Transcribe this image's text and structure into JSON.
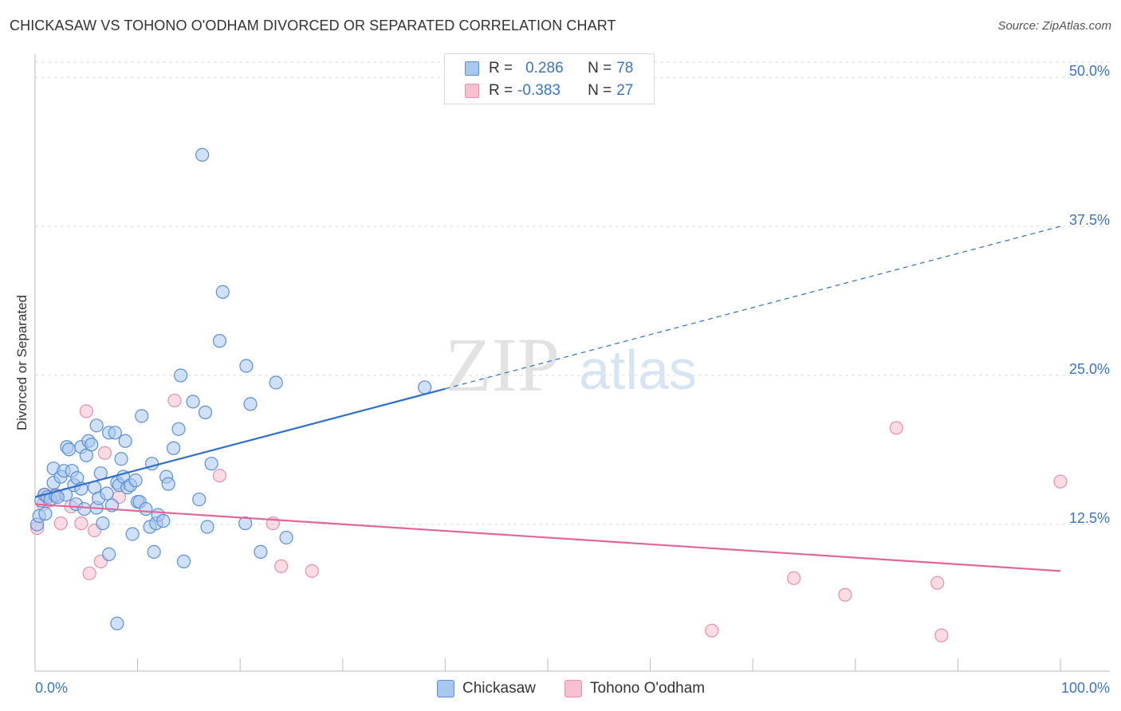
{
  "title": "CHICKASAW VS TOHONO O'ODHAM DIVORCED OR SEPARATED CORRELATION CHART",
  "source": "Source: ZipAtlas.com",
  "watermark": {
    "zip": "ZIP",
    "atlas": "atlas"
  },
  "legend": [
    {
      "r_label": "R =",
      "r_value": "0.286",
      "n_label": "N =",
      "n_value": "78"
    },
    {
      "r_label": "R =",
      "r_value": "-0.383",
      "n_label": "N =",
      "n_value": "27"
    }
  ],
  "colors": {
    "series1_fill": "#a9c8f0",
    "series1_stroke": "#5a8fd6",
    "series1_line": "#2f6fc8",
    "series2_fill": "#f7c0d0",
    "series2_stroke": "#e690ab",
    "series2_line": "#e0679a",
    "axis_text": "#3a74c4",
    "grid": "#dcdcdc"
  },
  "chart_data": {
    "type": "scatter",
    "title": "CHICKASAW VS TOHONO O'ODHAM DIVORCED OR SEPARATED CORRELATION CHART",
    "xlabel": "",
    "ylabel": "Divorced or Separated",
    "xlim": [
      0,
      100
    ],
    "ylim": [
      0,
      53
    ],
    "x_tick_labels": [
      "0.0%",
      "100.0%"
    ],
    "y_ticks": [
      12.5,
      25.0,
      37.5,
      50.0
    ],
    "y_tick_labels": [
      "12.5%",
      "25.0%",
      "37.5%",
      "50.0%"
    ],
    "grid": "horizontal dashed",
    "legend_position": "top-center",
    "series": [
      {
        "name": "Chickasaw",
        "points": [
          [
            0.2,
            12.5
          ],
          [
            0.4,
            13.2
          ],
          [
            0.6,
            14.5
          ],
          [
            0.9,
            15.0
          ],
          [
            1.2,
            14.8
          ],
          [
            1.5,
            14.6
          ],
          [
            1.8,
            16.0
          ],
          [
            1.8,
            17.2
          ],
          [
            2.0,
            14.9
          ],
          [
            2.5,
            16.5
          ],
          [
            2.8,
            17.0
          ],
          [
            3.0,
            15.0
          ],
          [
            3.1,
            19.0
          ],
          [
            3.3,
            18.8
          ],
          [
            3.6,
            17.0
          ],
          [
            3.8,
            15.8
          ],
          [
            4.0,
            14.2
          ],
          [
            4.1,
            16.4
          ],
          [
            4.5,
            15.5
          ],
          [
            4.5,
            19.0
          ],
          [
            4.8,
            13.8
          ],
          [
            5.0,
            18.3
          ],
          [
            5.2,
            19.5
          ],
          [
            5.5,
            19.2
          ],
          [
            5.8,
            15.6
          ],
          [
            6.0,
            13.9
          ],
          [
            6.0,
            20.8
          ],
          [
            6.2,
            14.7
          ],
          [
            6.4,
            16.8
          ],
          [
            6.6,
            12.6
          ],
          [
            7.0,
            15.1
          ],
          [
            7.2,
            20.2
          ],
          [
            7.5,
            14.1
          ],
          [
            7.8,
            20.2
          ],
          [
            8.0,
            16.0
          ],
          [
            8.2,
            15.8
          ],
          [
            8.4,
            18.0
          ],
          [
            8.6,
            16.5
          ],
          [
            8.8,
            19.5
          ],
          [
            9.0,
            15.6
          ],
          [
            9.3,
            15.8
          ],
          [
            9.5,
            11.7
          ],
          [
            9.8,
            16.2
          ],
          [
            10.0,
            14.4
          ],
          [
            10.2,
            14.4
          ],
          [
            10.4,
            21.6
          ],
          [
            10.8,
            13.8
          ],
          [
            11.2,
            12.3
          ],
          [
            11.4,
            17.6
          ],
          [
            11.6,
            10.2
          ],
          [
            11.8,
            12.6
          ],
          [
            12.0,
            13.3
          ],
          [
            12.5,
            12.8
          ],
          [
            12.8,
            16.5
          ],
          [
            13.0,
            15.9
          ],
          [
            13.5,
            18.9
          ],
          [
            14.0,
            20.5
          ],
          [
            14.2,
            25.0
          ],
          [
            14.5,
            9.4
          ],
          [
            15.4,
            22.8
          ],
          [
            16.0,
            14.6
          ],
          [
            16.3,
            43.5
          ],
          [
            16.6,
            21.9
          ],
          [
            16.8,
            12.3
          ],
          [
            17.2,
            17.6
          ],
          [
            18.0,
            27.9
          ],
          [
            18.3,
            32.0
          ],
          [
            20.5,
            12.6
          ],
          [
            20.6,
            25.8
          ],
          [
            21.0,
            22.6
          ],
          [
            22.0,
            10.2
          ],
          [
            23.5,
            24.4
          ],
          [
            24.5,
            11.4
          ],
          [
            38.0,
            24.0
          ],
          [
            8.0,
            4.2
          ],
          [
            7.2,
            10.0
          ],
          [
            2.2,
            14.8
          ],
          [
            1.0,
            13.4
          ]
        ],
        "trend": {
          "x_start": 0,
          "y_start": 14.8,
          "x_end": 100,
          "y_end": 37.5,
          "solid_until_x": 40
        }
      },
      {
        "name": "Tohono O'odham",
        "points": [
          [
            0.2,
            12.2
          ],
          [
            0.8,
            14.2
          ],
          [
            1.0,
            15.0
          ],
          [
            1.4,
            14.5
          ],
          [
            2.0,
            15.0
          ],
          [
            2.5,
            12.6
          ],
          [
            3.5,
            14.0
          ],
          [
            4.5,
            12.6
          ],
          [
            5.0,
            22.0
          ],
          [
            5.3,
            8.4
          ],
          [
            5.8,
            12.0
          ],
          [
            6.4,
            9.4
          ],
          [
            6.8,
            18.5
          ],
          [
            8.2,
            14.8
          ],
          [
            13.6,
            22.9
          ],
          [
            18.0,
            16.6
          ],
          [
            23.2,
            12.6
          ],
          [
            24.0,
            9.0
          ],
          [
            27.0,
            8.6
          ],
          [
            42.4,
            null
          ],
          [
            66.0,
            3.6
          ],
          [
            74.0,
            8.0
          ],
          [
            79.0,
            6.6
          ],
          [
            84.0,
            20.6
          ],
          [
            88.0,
            7.6
          ],
          [
            88.4,
            3.2
          ],
          [
            100.0,
            16.1
          ]
        ],
        "trend": {
          "x_start": 0,
          "y_start": 14.2,
          "x_end": 100,
          "y_end": 8.6
        }
      }
    ]
  },
  "bottom_legend": [
    {
      "name": "Chickasaw"
    },
    {
      "name": "Tohono O'odham"
    }
  ]
}
